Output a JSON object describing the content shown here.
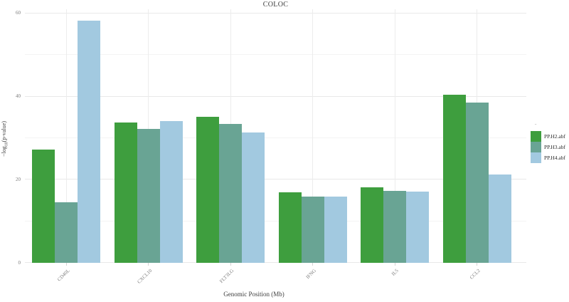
{
  "title": "COLOC",
  "axes": {
    "x_label": "Genomic Position (Mb)",
    "y_label_parts": {
      "pre": "−log",
      "sub": "10",
      "post": "(p-value)"
    },
    "y_ticks": [
      0,
      20,
      40,
      60
    ]
  },
  "legend": {
    "title": "..",
    "items": [
      "PP.H2.abf",
      "PP.H3.abf",
      "PP.H4.abf"
    ]
  },
  "colors": {
    "pp_h2": "#3e9e3e",
    "pp_h3": "#69a494",
    "pp_h4": "#a2c9e0",
    "grid_major": "#e9e9e9",
    "grid_minor": "#f4f4f4",
    "axis_text": "#7d7d7d"
  },
  "chart_data": {
    "type": "bar",
    "title": "COLOC",
    "xlabel": "Genomic Position (Mb)",
    "ylabel": "-log10(p-value)",
    "ylim": [
      0,
      61
    ],
    "grid": true,
    "legend_position": "right",
    "categories": [
      "CD40L",
      "CXCL10",
      "FLT3LG",
      "IFNG",
      "IL5",
      "CCL2"
    ],
    "series": [
      {
        "name": "PP.H2.abf",
        "color": "#3e9e3e",
        "values": [
          27.2,
          33.8,
          35.1,
          16.9,
          18.2,
          40.4
        ]
      },
      {
        "name": "PP.H3.abf",
        "color": "#69a494",
        "values": [
          14.6,
          32.2,
          33.5,
          15.9,
          17.3,
          38.5
        ]
      },
      {
        "name": "PP.H4.abf",
        "color": "#a2c9e0",
        "values": [
          58.2,
          34.1,
          31.3,
          16.0,
          17.2,
          21.2
        ]
      }
    ]
  }
}
